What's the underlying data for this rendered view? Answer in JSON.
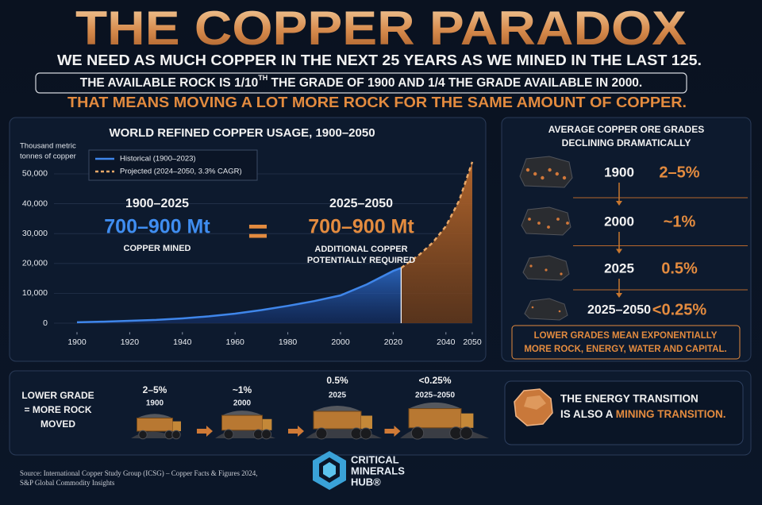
{
  "header": {
    "title": "THE COPPER PARADOX",
    "line1": "WE NEED AS MUCH COPPER IN THE NEXT 25 YEARS AS WE MINED IN THE LAST 125.",
    "line2": [
      "THE AVAILABLE ROCK IS 1/10",
      "TH",
      " THE GRADE OF 1900 AND 1/4  THE GRADE AVAILABLE IN 2000."
    ],
    "line3": "THAT MEANS MOVING A LOT MORE ROCK FOR THE SAME AMOUNT OF COPPER."
  },
  "chart_data": {
    "type": "line",
    "title": "WORLD REFINED COPPER USAGE, 1900–2050",
    "y_label": [
      "Thousand metric",
      "tonnes of copper"
    ],
    "xlim": [
      1900,
      2050
    ],
    "xticks": [
      1900,
      1920,
      1940,
      1960,
      1980,
      2000,
      2020,
      2040,
      2050
    ],
    "ylim": [
      -3000,
      56000
    ],
    "yticks": [
      0,
      {
        "value": 10000,
        "label": "10,000"
      },
      {
        "value": 20000,
        "label": "20,000"
      },
      {
        "value": 30000,
        "label": "30,000"
      },
      {
        "value": 40000,
        "label": "40,000"
      },
      {
        "value": 50000,
        "label": "50,000"
      }
    ],
    "grid": true,
    "legend": "top-left",
    "series": [
      {
        "name": "Historical (1900–2023)",
        "color": "#3f86ea",
        "linestyle": "solid",
        "x": [
          1900,
          1910,
          1920,
          1930,
          1940,
          1950,
          1960,
          1970,
          1980,
          1990,
          2000,
          2010,
          2020,
          2023
        ],
        "values": [
          300,
          500,
          800,
          1100,
          1600,
          2300,
          3200,
          4400,
          5800,
          7400,
          9300,
          13000,
          17500,
          18500
        ]
      },
      {
        "name": "Projected (2024–2050, 3.3% CAGR)",
        "color": "#e8a868",
        "linestyle": "dashed",
        "x": [
          2023,
          2030,
          2035,
          2040,
          2045,
          2050
        ],
        "values": [
          18500,
          23000,
          27000,
          32500,
          41000,
          54000
        ]
      }
    ],
    "annotations": {
      "left": {
        "period": "1900–2025",
        "amount": "700–900 Mt",
        "caption": [
          "COPPER MINED"
        ]
      },
      "equals": "=",
      "right": {
        "period": "2025–2050",
        "amount": "700–900 Mt",
        "caption": [
          "ADDITIONAL COPPER",
          "POTENTIALLY REQUIRED"
        ]
      }
    }
  },
  "grades": {
    "title": [
      "AVERAGE COPPER ORE GRADES",
      "DECLINING DRAMATICALLY"
    ],
    "rows": [
      {
        "year": "1900",
        "grade": "2–5%"
      },
      {
        "year": "2000",
        "grade": "~1%"
      },
      {
        "year": "2025",
        "grade": "0.5%"
      },
      {
        "year": "2025–2050",
        "grade": "<0.25%"
      }
    ],
    "note": [
      "LOWER GRADES MEAN EXPONENTIALLY",
      "MORE ROCK, ENERGY, WATER AND CAPITAL."
    ]
  },
  "trucks": {
    "label": [
      "LOWER GRADE",
      "= MORE ROCK",
      "MOVED"
    ],
    "items": [
      {
        "grade": "2–5%",
        "year": "1900"
      },
      {
        "grade": "~1%",
        "year": "2000"
      },
      {
        "grade": "0.5%",
        "year": "2025"
      },
      {
        "grade": "<0.25%",
        "year": "2025–2050"
      }
    ]
  },
  "transition": {
    "line1": "THE ENERGY TRANSITION",
    "line2": "IS ALSO A ",
    "highlight": "MINING TRANSITION."
  },
  "source": [
    "Source: International Copper Study Group (ICSG) – Copper Facts & Figures 2024,",
    "S&P Global Commodity Insights"
  ],
  "logo": [
    "CRITICAL",
    "MINERALS",
    "HUB®"
  ]
}
